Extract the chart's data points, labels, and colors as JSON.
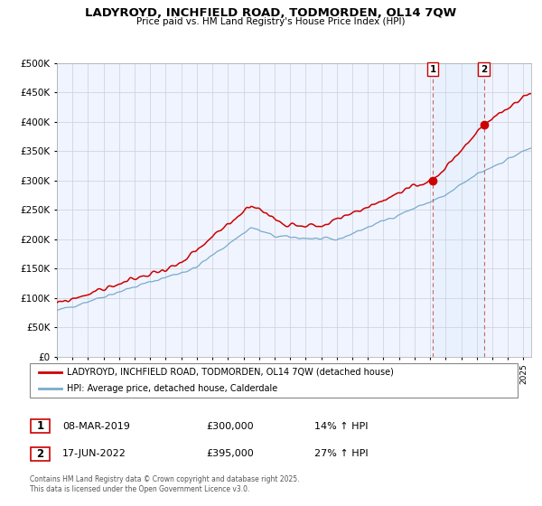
{
  "title": "LADYROYD, INCHFIELD ROAD, TODMORDEN, OL14 7QW",
  "subtitle": "Price paid vs. HM Land Registry's House Price Index (HPI)",
  "legend_label_red": "LADYROYD, INCHFIELD ROAD, TODMORDEN, OL14 7QW (detached house)",
  "legend_label_blue": "HPI: Average price, detached house, Calderdale",
  "footer": "Contains HM Land Registry data © Crown copyright and database right 2025.\nThis data is licensed under the Open Government Licence v3.0.",
  "sale1_label": "1",
  "sale1_date": "08-MAR-2019",
  "sale1_price": "£300,000",
  "sale1_hpi": "14% ↑ HPI",
  "sale2_label": "2",
  "sale2_date": "17-JUN-2022",
  "sale2_price": "£395,000",
  "sale2_hpi": "27% ↑ HPI",
  "sale1_year": 2019.18,
  "sale2_year": 2022.46,
  "sale1_value": 300000,
  "sale2_value": 395000,
  "red_color": "#cc0000",
  "blue_color": "#7aaacc",
  "marker_color": "#cc0000",
  "vline_color": "#cc6666",
  "shade_color": "#ddeeff",
  "ylim_min": 0,
  "ylim_max": 500000,
  "xlim_min": 1995,
  "xlim_max": 2025.5,
  "bg_color": "#f0f4ff"
}
